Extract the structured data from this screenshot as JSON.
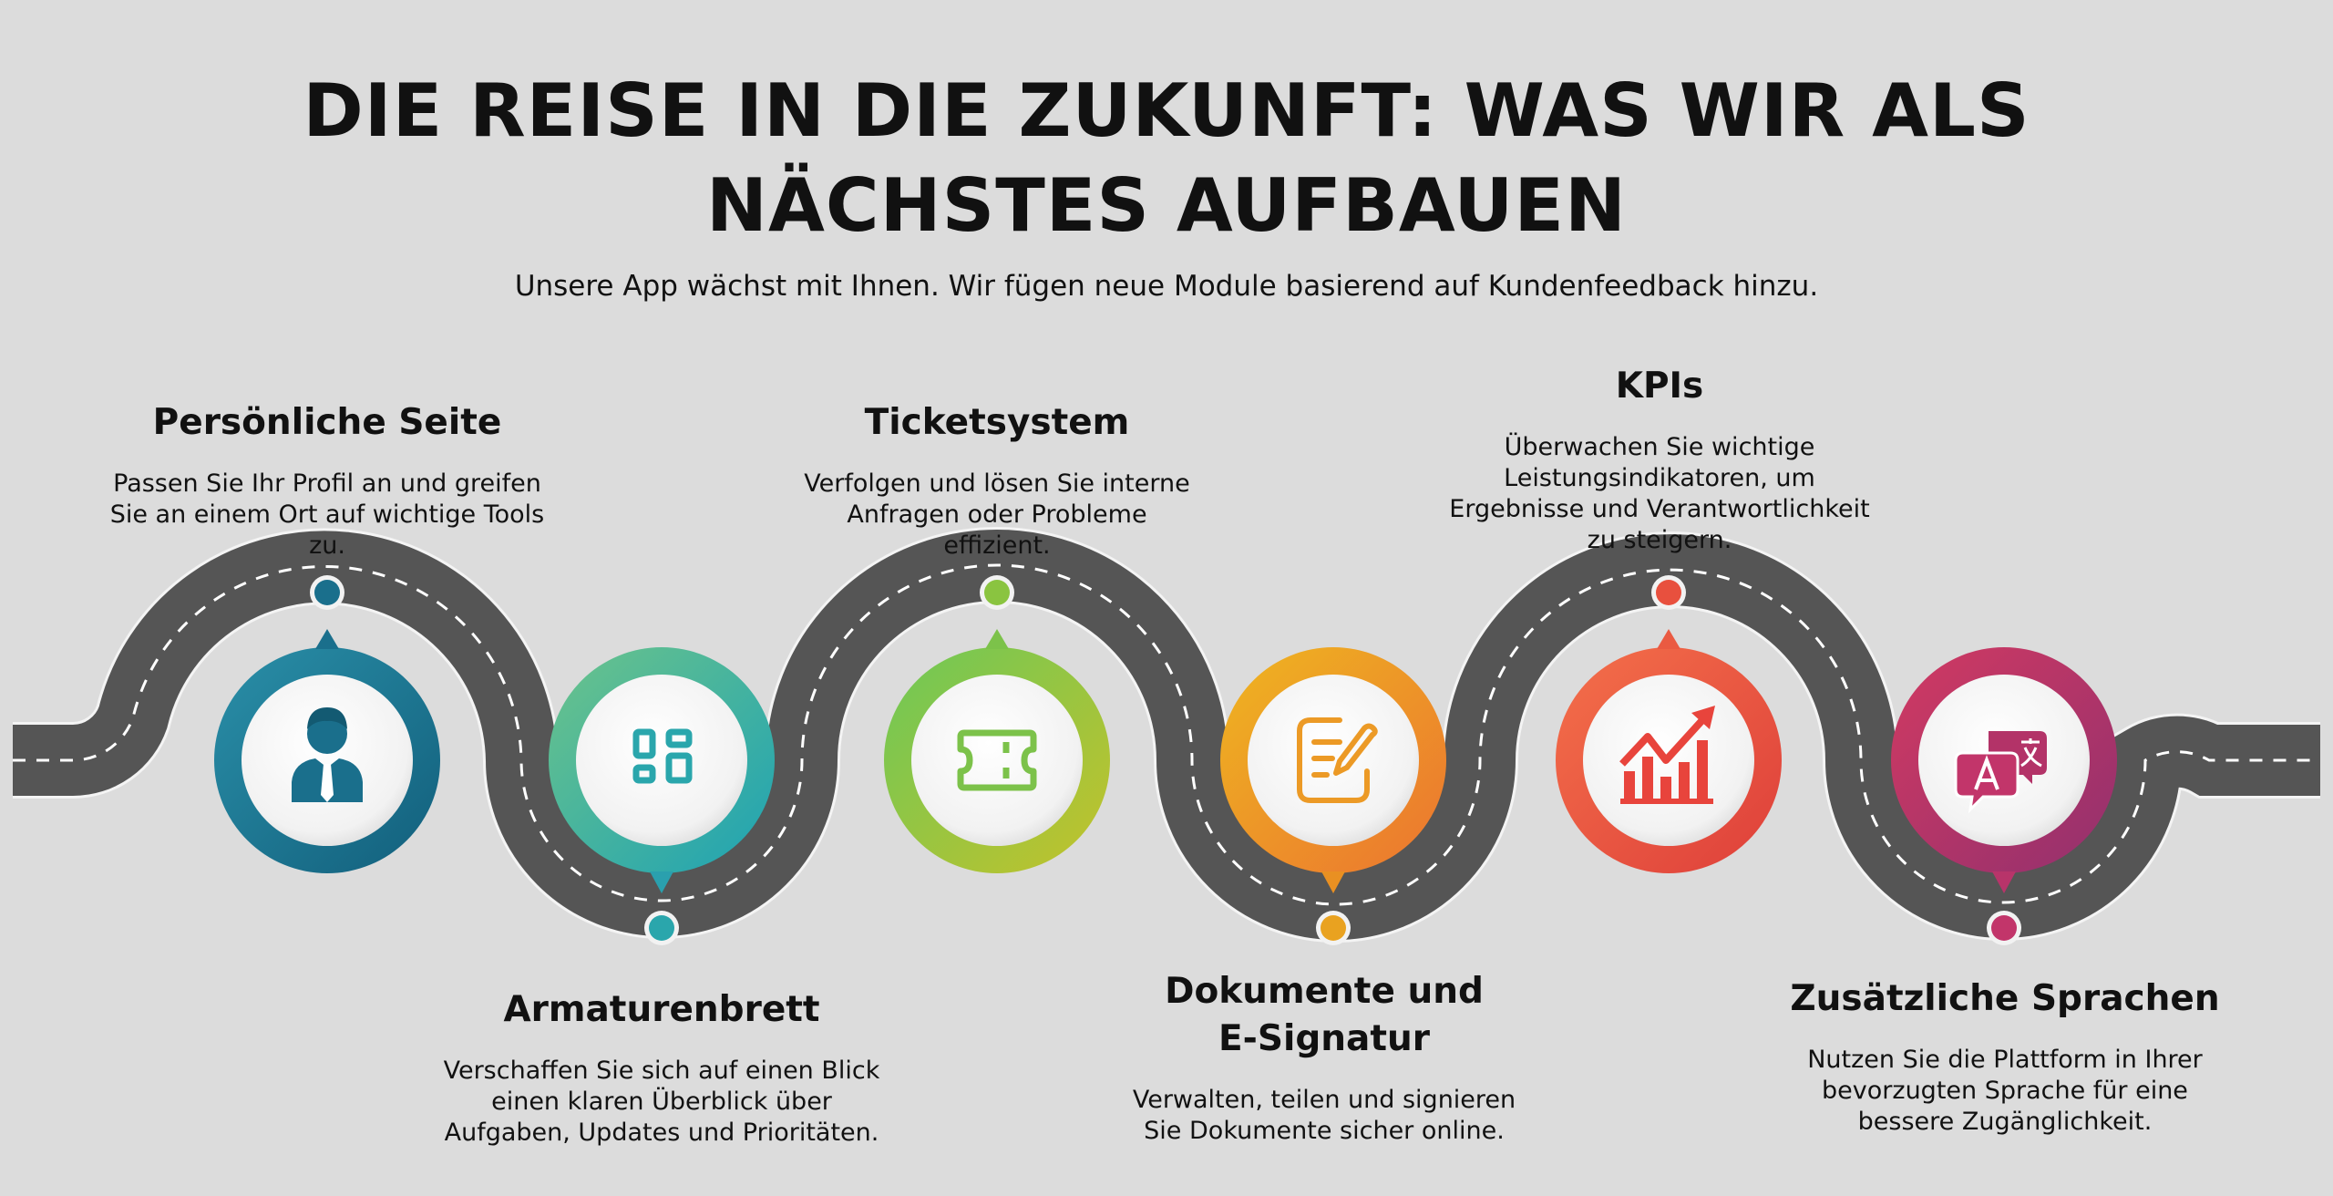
{
  "header": {
    "title_line1": "DIE REISE IN DIE ZUKUNFT: WAS WIR ALS",
    "title_line2": "NÄCHSTES AUFBAUEN",
    "subtitle": "Unsere App wächst mit Ihnen. Wir fügen neue Module basierend auf Kundenfeedback hinzu."
  },
  "steps": [
    {
      "title": "Persönliche Seite",
      "description": "Passen Sie Ihr Profil an und greifen Sie an einem Ort auf wichtige Tools zu.",
      "icon": "user-profile-icon",
      "color": "#1a6f8c",
      "color_light": "#2a8fa8"
    },
    {
      "title": "Armaturenbrett",
      "description": "Verschaffen Sie sich auf einen Blick einen klaren Überblick über Aufgaben, Updates und Prioritäten.",
      "icon": "dashboard-grid-icon",
      "color": "#2aa6ac",
      "color_light": "#6cc48a"
    },
    {
      "title": "Ticketsystem",
      "description": "Verfolgen und lösen Sie interne Anfragen oder Probleme effizient.",
      "icon": "ticket-icon",
      "color": "#7cc24a",
      "color_light": "#b8c431"
    },
    {
      "title": "Dokumente und E-Signatur",
      "description": "Verwalten, teilen und signieren Sie Dokumente sicher online.",
      "icon": "document-pen-icon",
      "color": "#e9a220",
      "color_light": "#ef7a2e"
    },
    {
      "title": "KPIs",
      "description": "Überwachen Sie wichtige Leistungsindikatoren, um Ergebnisse und Verantwortlichkeit zu steigern.",
      "icon": "growth-chart-icon",
      "color": "#e8503e",
      "color_light": "#f07a44"
    },
    {
      "title": "Zusätzliche Sprachen",
      "description": "Nutzen Sie die Plattform in Ihrer bevorzugten Sprache für eine bessere Zugänglichkeit.",
      "icon": "translate-icon",
      "color": "#c2356a",
      "color_light": "#a03370"
    }
  ],
  "road_color": "#4c4c4c"
}
